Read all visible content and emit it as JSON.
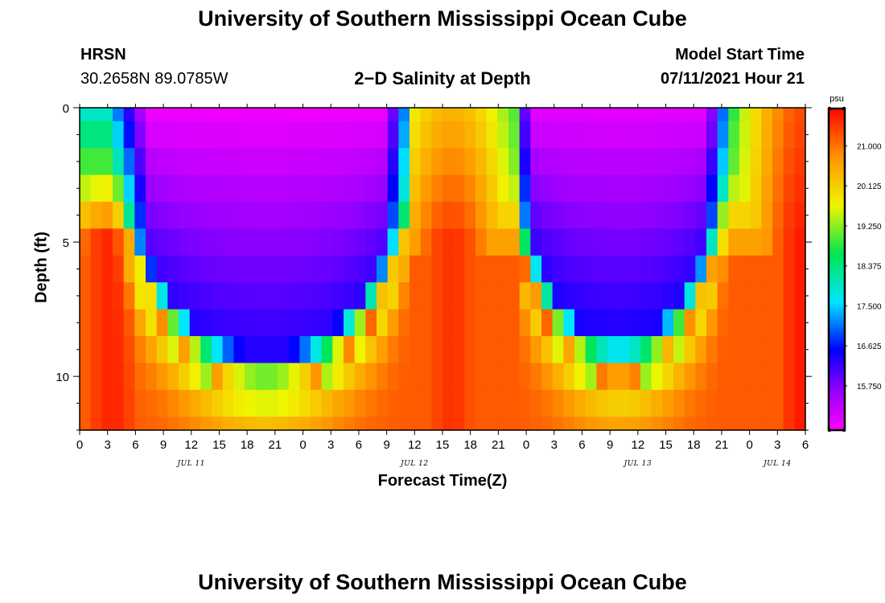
{
  "header": {
    "title_top": "University of Southern Mississippi Ocean Cube",
    "title_bottom": "University of Southern Mississippi Ocean Cube",
    "station": "HRSN",
    "coords": "30.2658N  89.0785W",
    "model_label": "Model Start Time",
    "model_time": "07/11/2021 Hour 21"
  },
  "chart_data": {
    "type": "heatmap",
    "title": "2−D Salinity at Depth",
    "xlabel": "Forecast Time(Z)",
    "ylabel": "Depth (ft)",
    "x_start_hour": 0,
    "x_end_hour": 78,
    "x_tick_step_hours": 3,
    "x_tick_labels": [
      "0",
      "3",
      "6",
      "9",
      "12",
      "15",
      "18",
      "21",
      "0",
      "3",
      "6",
      "9",
      "12",
      "15",
      "18",
      "21",
      "0",
      "3",
      "6",
      "9",
      "12",
      "15",
      "18",
      "21",
      "0",
      "3",
      "6"
    ],
    "date_labels": [
      {
        "label": "JUL 11",
        "hour": 12
      },
      {
        "label": "JUL 12",
        "hour": 36
      },
      {
        "label": "JUL 13",
        "hour": 60
      },
      {
        "label": "JUL 14",
        "hour": 75
      }
    ],
    "y_range": [
      0,
      12
    ],
    "y_ticks": [
      0,
      5,
      10
    ],
    "y_tick_labels": [
      "0",
      "5",
      "10"
    ],
    "depth_levels_ft": [
      0,
      0.5,
      1.5,
      2.5,
      3.5,
      4.5,
      5.5,
      6.5,
      7.5,
      8.5,
      9.5,
      10.5,
      11.5,
      12
    ],
    "colorbar": {
      "unit": "psu",
      "min": 14.8,
      "max": 21.8,
      "tick_values": [
        15.75,
        16.625,
        17.5,
        18.375,
        19.25,
        20.125,
        21.0
      ],
      "tick_labels": [
        "15.750",
        "16.625",
        "17.500",
        "18.375",
        "19.250",
        "20.125",
        "21.000"
      ]
    },
    "fresh_events": [
      {
        "center_hour": 20,
        "surface_psu": 14.9,
        "core_depth_ft": 7.5,
        "floor_depth_ft": 10.5,
        "start_hour": 2,
        "end_hour": 36,
        "fresh_psu": 16.6
      },
      {
        "center_hour": 58,
        "surface_psu": 15.0,
        "core_depth_ft": 7.5,
        "floor_depth_ft": 10.0,
        "start_hour": 47,
        "end_hour": 72,
        "fresh_psu": 16.7
      }
    ],
    "salty_peaks": [
      {
        "center_hour": 3.5,
        "max_psu": 21.6,
        "surface_psu": 17.0
      },
      {
        "center_hour": 40,
        "max_psu": 21.5,
        "surface_psu": 20.4
      },
      {
        "center_hour": 78,
        "max_psu": 21.7,
        "surface_psu": 21.3
      }
    ]
  }
}
